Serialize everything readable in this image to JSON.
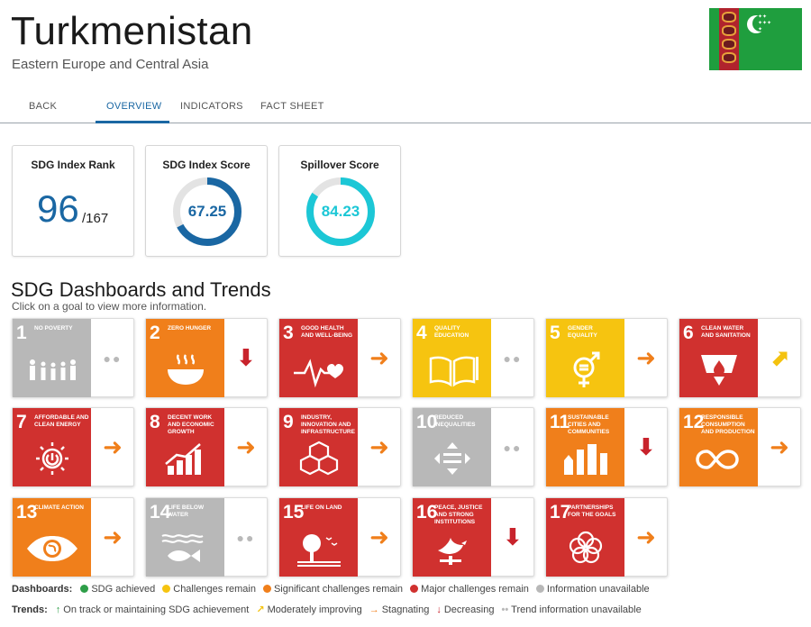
{
  "header": {
    "title": "Turkmenistan",
    "subtitle": "Eastern Europe and Central Asia"
  },
  "tabs": [
    {
      "label": "BACK"
    },
    {
      "label": "OVERVIEW",
      "active": true
    },
    {
      "label": "INDICATORS"
    },
    {
      "label": "FACT SHEET"
    }
  ],
  "cards": {
    "rank": {
      "title": "SDG Index Rank",
      "value": "96",
      "of": "/167"
    },
    "score": {
      "title": "SDG Index Score",
      "value": "67.25",
      "fraction": 0.6725,
      "color": "#1a67a3"
    },
    "spillover": {
      "title": "Spillover Score",
      "value": "84.23",
      "fraction": 0.8423,
      "color": "#1cc7d6"
    }
  },
  "section": {
    "title": "SDG Dashboards and Trends",
    "subtitle": "Click on a goal to view more information."
  },
  "goals": [
    {
      "num": "1",
      "name": "NO POVERTY",
      "color": "#b8b8b8",
      "icon": "family-icon",
      "trend": "grey"
    },
    {
      "num": "2",
      "name": "ZERO HUNGER",
      "color": "#f07f1b",
      "icon": "bowl-icon",
      "trend": "red-down"
    },
    {
      "num": "3",
      "name": "GOOD HEALTH AND WELL-BEING",
      "color": "#d0312f",
      "icon": "heartbeat-icon",
      "trend": "orange-right"
    },
    {
      "num": "4",
      "name": "QUALITY EDUCATION",
      "color": "#f6c410",
      "icon": "book-icon",
      "trend": "grey"
    },
    {
      "num": "5",
      "name": "GENDER EQUALITY",
      "color": "#f6c410",
      "icon": "gender-icon",
      "trend": "orange-right"
    },
    {
      "num": "6",
      "name": "CLEAN WATER AND SANITATION",
      "color": "#d0312f",
      "icon": "water-icon",
      "trend": "yellow-up"
    },
    {
      "num": "7",
      "name": "AFFORDABLE AND CLEAN ENERGY",
      "color": "#d0312f",
      "icon": "sun-power-icon",
      "trend": "orange-right"
    },
    {
      "num": "8",
      "name": "DECENT WORK AND ECONOMIC GROWTH",
      "color": "#d0312f",
      "icon": "growth-chart-icon",
      "trend": "orange-right"
    },
    {
      "num": "9",
      "name": "INDUSTRY, INNOVATION AND INFRASTRUCTURE",
      "color": "#d0312f",
      "icon": "cubes-icon",
      "trend": "orange-right"
    },
    {
      "num": "10",
      "name": "REDUCED INEQUALITIES",
      "color": "#b8b8b8",
      "icon": "equality-icon",
      "trend": "grey"
    },
    {
      "num": "11",
      "name": "SUSTAINABLE CITIES AND COMMUNITIES",
      "color": "#f07f1b",
      "icon": "city-icon",
      "trend": "red-down"
    },
    {
      "num": "12",
      "name": "RESPONSIBLE CONSUMPTION AND PRODUCTION",
      "color": "#f07f1b",
      "icon": "infinity-icon",
      "trend": "orange-right"
    },
    {
      "num": "13",
      "name": "CLIMATE ACTION",
      "color": "#f07f1b",
      "icon": "eye-globe-icon",
      "trend": "orange-right"
    },
    {
      "num": "14",
      "name": "LIFE BELOW WATER",
      "color": "#b8b8b8",
      "icon": "fish-icon",
      "trend": "grey"
    },
    {
      "num": "15",
      "name": "LIFE ON LAND",
      "color": "#d0312f",
      "icon": "tree-icon",
      "trend": "orange-right"
    },
    {
      "num": "16",
      "name": "PEACE, JUSTICE AND STRONG INSTITUTIONS",
      "color": "#d0312f",
      "icon": "dove-icon",
      "trend": "red-down"
    },
    {
      "num": "17",
      "name": "PARTNERSHIPS FOR THE GOALS",
      "color": "#d0312f",
      "icon": "rings-icon",
      "trend": "orange-right"
    }
  ],
  "legend": {
    "dashboards_label": "Dashboards:",
    "dashboards": [
      {
        "label": "SDG achieved",
        "color": "#2e9e48"
      },
      {
        "label": "Challenges remain",
        "color": "#f6c410"
      },
      {
        "label": "Significant challenges remain",
        "color": "#f07f1b"
      },
      {
        "label": "Major challenges remain",
        "color": "#d0312f"
      },
      {
        "label": "Information unavailable",
        "color": "#b8b8b8"
      }
    ],
    "trends_label": "Trends:",
    "trends": [
      {
        "symbol": "↑",
        "label": "On track or maintaining SDG achievement",
        "color": "#2e9e48"
      },
      {
        "symbol": "↗",
        "label": "Moderately improving",
        "color": "#f4c20f"
      },
      {
        "symbol": "→",
        "label": "Stagnating",
        "color": "#f07f1b"
      },
      {
        "symbol": "↓",
        "label": "Decreasing",
        "color": "#c8232c"
      },
      {
        "symbol": "••",
        "label": "Trend information unavailable",
        "color": "#b9b9b9"
      }
    ]
  }
}
